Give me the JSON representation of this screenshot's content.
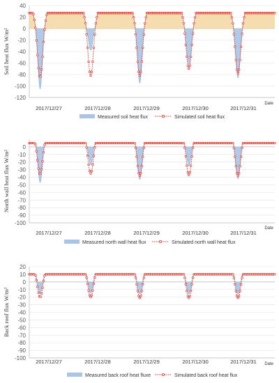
{
  "chart_data": [
    {
      "type": "area",
      "ylabel": "Soil heat flux  W/m²",
      "xlabel": "Date",
      "ylim": [
        -120,
        40
      ],
      "yticks": [
        40,
        20,
        0,
        -20,
        -40,
        -60,
        -80,
        -100,
        -120
      ],
      "categories": [
        "2017/12/27",
        "2017/12/28",
        "2017/12/29",
        "2017/12/30",
        "2017/12/31"
      ],
      "day_range": [
        0,
        5
      ],
      "grid": true,
      "legend_position": "bottom",
      "colors": {
        "measured_fill": "#a9c4e4",
        "measured_line": "#8faed8",
        "positive_fill": "#f3d7a1",
        "simulated": "#d9342b"
      },
      "baseline": {
        "day_value": 27,
        "night_value": 2
      },
      "day_peaks": [
        {
          "center": 0.22,
          "measured": -105,
          "simulated": -85,
          "half_width": 0.09
        },
        {
          "center": 1.25,
          "measured": -38,
          "simulated": -82,
          "half_width": 0.09
        },
        {
          "center": 2.25,
          "measured": -95,
          "simulated": -82,
          "half_width": 0.09
        },
        {
          "center": 3.25,
          "measured": -62,
          "simulated": -70,
          "half_width": 0.09
        },
        {
          "center": 4.25,
          "measured": -86,
          "simulated": -78,
          "half_width": 0.09
        }
      ],
      "series": [
        {
          "name": "Measured soil heat flux",
          "style": "area"
        },
        {
          "name": "Simulated soil heat flux",
          "style": "line-marker"
        }
      ]
    },
    {
      "type": "area",
      "ylabel": "North wall heat flux  W/m²",
      "xlabel": "Date",
      "ylim": [
        -100,
        10
      ],
      "yticks": [
        0,
        -10,
        -20,
        -30,
        -40,
        -50,
        -60,
        -70,
        -80,
        -90,
        -100
      ],
      "categories": [
        "2017/12/27",
        "2017/12/28",
        "2017/12/29",
        "2017/12/30",
        "2017/12/31"
      ],
      "day_range": [
        0,
        5
      ],
      "grid": true,
      "legend_position": "bottom",
      "colors": {
        "measured_fill": "#a9c4e4",
        "measured_line": "#8faed8",
        "simulated": "#d9342b"
      },
      "baseline": {
        "day_value": 5,
        "night_value": 5
      },
      "day_peaks": [
        {
          "center": 0.22,
          "measured": -47,
          "simulated": -36,
          "half_width": 0.09
        },
        {
          "center": 1.25,
          "measured": -23,
          "simulated": -35,
          "half_width": 0.09
        },
        {
          "center": 2.25,
          "measured": -43,
          "simulated": -38,
          "half_width": 0.09
        },
        {
          "center": 3.25,
          "measured": -25,
          "simulated": -37,
          "half_width": 0.09
        },
        {
          "center": 4.25,
          "measured": -42,
          "simulated": -38,
          "half_width": 0.09
        }
      ],
      "series": [
        {
          "name": "Measured north wall heat flux",
          "style": "area"
        },
        {
          "name": "Simulated north wall heat flux",
          "style": "line-marker"
        }
      ]
    },
    {
      "type": "area",
      "ylabel": "Back roof flux  W/m²",
      "xlabel": "Date",
      "ylim": [
        -100,
        20
      ],
      "yticks": [
        20,
        10,
        0,
        -10,
        -20,
        -30,
        -40,
        -50,
        -60,
        -70,
        -80,
        -90,
        -100
      ],
      "categories": [
        "2017/12/27",
        "2017/12/28",
        "2017/12/29",
        "2017/12/30",
        "2017/12/31"
      ],
      "day_range": [
        0,
        5
      ],
      "grid": true,
      "legend_position": "bottom",
      "colors": {
        "measured_fill": "#a9c4e4",
        "measured_line": "#8faed8",
        "simulated": "#d9342b"
      },
      "baseline": {
        "day_value": 10,
        "night_value": 10
      },
      "day_peaks": [
        {
          "center": 0.22,
          "measured": -15,
          "simulated": -20,
          "half_width": 0.09
        },
        {
          "center": 1.25,
          "measured": -15,
          "simulated": -20,
          "half_width": 0.09
        },
        {
          "center": 2.25,
          "measured": -16,
          "simulated": -21,
          "half_width": 0.09
        },
        {
          "center": 3.25,
          "measured": -16,
          "simulated": -21,
          "half_width": 0.09
        },
        {
          "center": 4.25,
          "measured": -16,
          "simulated": -21,
          "half_width": 0.09
        }
      ],
      "series": [
        {
          "name": "Measured back roof heat fluxe",
          "style": "area"
        },
        {
          "name": "Simulated back roof  heat flux",
          "style": "line-marker"
        }
      ]
    }
  ]
}
